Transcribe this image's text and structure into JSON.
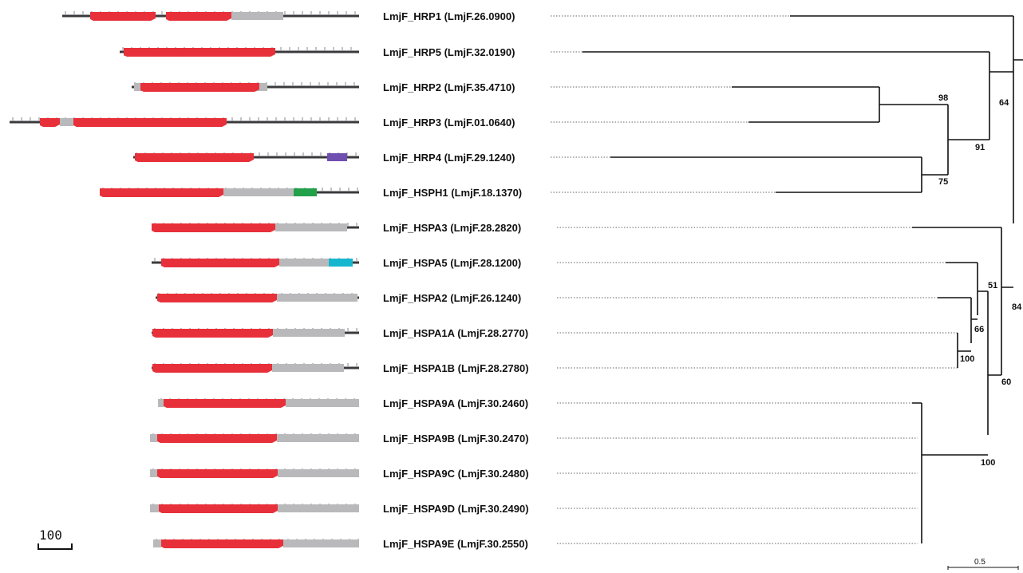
{
  "genes": [
    {
      "name": "LmjF_HRP1",
      "id": "(LmjF.26.0900)"
    },
    {
      "name": "LmjF_HRP5",
      "id": "(LmjF.32.0190)"
    },
    {
      "name": "LmjF_HRP2",
      "id": "(LmjF.35.4710)"
    },
    {
      "name": "LmjF_HRP3",
      "id": "(LmjF.01.0640)"
    },
    {
      "name": "LmjF_HRP4",
      "id": "(LmjF.29.1240)"
    },
    {
      "name": "LmjF_HSPH1",
      "id": "(LmjF.18.1370)"
    },
    {
      "name": "LmjF_HSPA3",
      "id": "(LmjF.28.2820)"
    },
    {
      "name": "LmjF_HSPA5",
      "id": "(LmjF.28.1200)"
    },
    {
      "name": "LmjF_HSPA2",
      "id": "(LmjF.26.1240)"
    },
    {
      "name": "LmjF_HSPA1A",
      "id": "(LmjF.28.2770)"
    },
    {
      "name": "LmjF_HSPA1B",
      "id": "(LmjF.28.2780)"
    },
    {
      "name": "LmjF_HSPA9A",
      "id": "(LmjF.30.2460)"
    },
    {
      "name": "LmjF_HSPA9B",
      "id": "(LmjF.30.2470)"
    },
    {
      "name": "LmjF_HSPA9C",
      "id": "(LmjF.30.2480)"
    },
    {
      "name": "LmjF_HSPA9D",
      "id": "(LmjF.30.2490)"
    },
    {
      "name": "LmjF_HSPA9E",
      "id": "(LmjF.30.2550)"
    }
  ],
  "bootstraps": {
    "b98": "98",
    "b64": "64",
    "b91": "91",
    "b75": "75",
    "b51": "51",
    "b84": "84",
    "b66": "66",
    "b100a": "100",
    "b60": "60",
    "b100b": "100"
  },
  "scale_domain": "100",
  "scale_tree": "0.5",
  "colors": {
    "red_domain": "#e8303a",
    "grey_domain": "#b9b9bb",
    "backbone": "#3a3a3c",
    "purple_domain": "#6f4fb0",
    "green_domain": "#23a04a",
    "cyan_domain": "#17b6cf"
  }
}
